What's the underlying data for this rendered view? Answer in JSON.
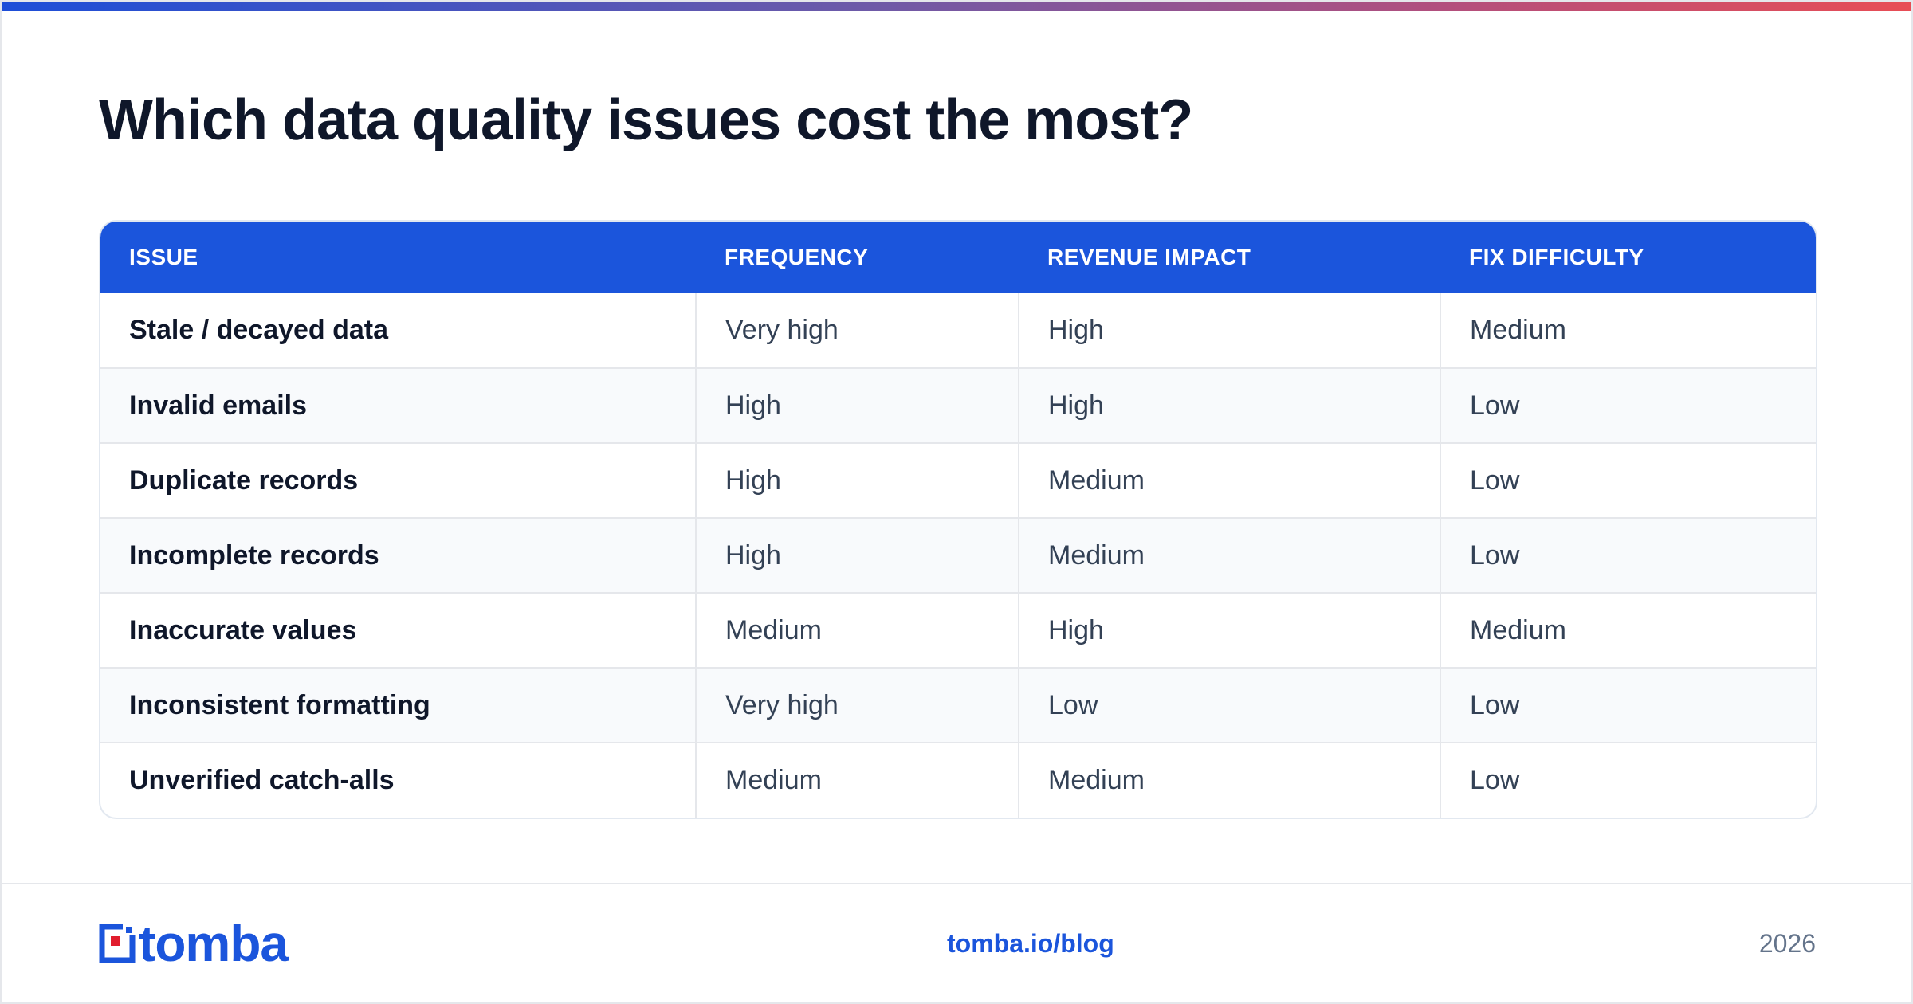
{
  "title": "Which data quality issues cost the most?",
  "table": {
    "headers": [
      "ISSUE",
      "FREQUENCY",
      "REVENUE IMPACT",
      "FIX DIFFICULTY"
    ],
    "rows": [
      [
        "Stale / decayed data",
        "Very high",
        "High",
        "Medium"
      ],
      [
        "Invalid emails",
        "High",
        "High",
        "Low"
      ],
      [
        "Duplicate records",
        "High",
        "Medium",
        "Low"
      ],
      [
        "Incomplete records",
        "High",
        "Medium",
        "Low"
      ],
      [
        "Inaccurate values",
        "Medium",
        "High",
        "Medium"
      ],
      [
        "Inconsistent formatting",
        "Very high",
        "Low",
        "Low"
      ],
      [
        "Unverified catch-alls",
        "Medium",
        "Medium",
        "Low"
      ]
    ]
  },
  "footer": {
    "logo_text": "tomba",
    "logo_icon": "tomba-logo-icon",
    "link": "tomba.io/blog",
    "year": "2026"
  },
  "colors": {
    "accent": "#1b55dc",
    "gradient_start": "#1d4ed8",
    "gradient_end": "#e84d55",
    "logo_red": "#e11d2e"
  }
}
